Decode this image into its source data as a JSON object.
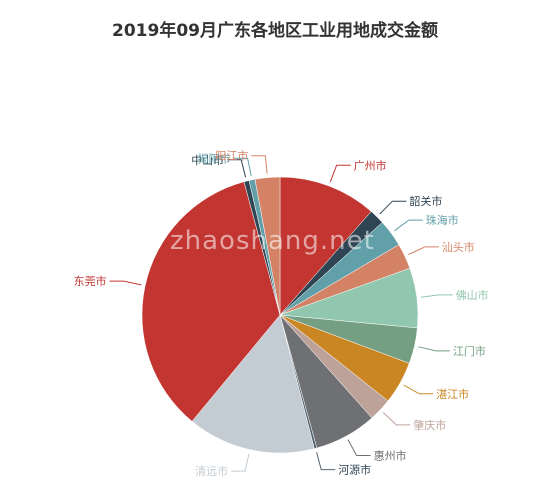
{
  "chart_data": {
    "type": "pie",
    "title": "2019年09月广东各地区工业用地成交金额",
    "categories": [
      "广州市",
      "韶关市",
      "珠海市",
      "汕头市",
      "佛山市",
      "江门市",
      "湛江市",
      "肇庆市",
      "惠州市",
      "河源市",
      "清远市",
      "东莞市",
      "中山市",
      "揭阳市",
      "阳江市"
    ],
    "values": [
      11.5,
      1.8,
      3.2,
      3.0,
      7.0,
      4.2,
      5.0,
      2.7,
      7.3,
      0.3,
      15.0,
      34.8,
      0.6,
      0.7,
      2.9
    ],
    "colors": [
      "#c23531",
      "#2f4554",
      "#61a0a8",
      "#d48265",
      "#91c7ae",
      "#749f83",
      "#ca8622",
      "#bda29a",
      "#6e7074",
      "#546570",
      "#c4ccd3",
      "#c23531",
      "#2f4554",
      "#61a0a8",
      "#d48265"
    ]
  },
  "watermark": "zhaoshang.net"
}
